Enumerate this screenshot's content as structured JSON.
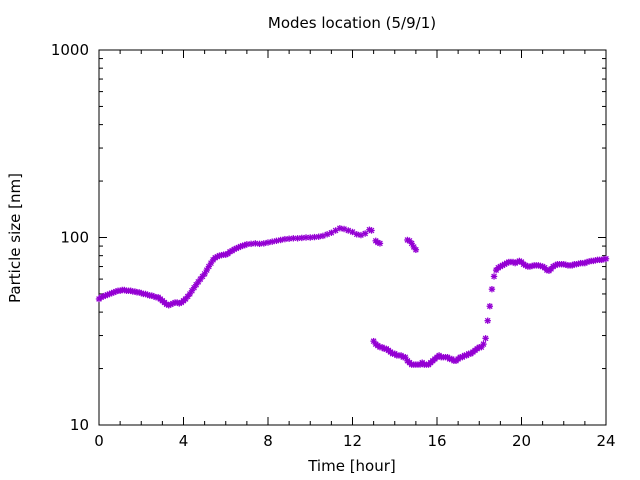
{
  "chart_data": {
    "type": "scatter",
    "title": "Modes location (5/9/1)",
    "xlabel": "Time [hour]",
    "ylabel": "Particle size [nm]",
    "xlim": [
      0,
      24
    ],
    "ylim": [
      10,
      1000
    ],
    "yscale": "log",
    "grid": false,
    "x_ticks": [
      0,
      4,
      8,
      12,
      16,
      20,
      24
    ],
    "y_ticks": [
      10,
      100,
      1000
    ],
    "marker_color": "#9400d3",
    "marker": "star",
    "series": [
      {
        "points": [
          [
            0.0,
            47
          ],
          [
            0.1,
            48
          ],
          [
            0.2,
            48.5
          ],
          [
            0.3,
            49
          ],
          [
            0.4,
            49.5
          ],
          [
            0.5,
            50
          ],
          [
            0.6,
            50.5
          ],
          [
            0.7,
            51
          ],
          [
            0.8,
            51.5
          ],
          [
            0.9,
            52
          ],
          [
            1.0,
            52
          ],
          [
            1.1,
            52.5
          ],
          [
            1.2,
            52.5
          ],
          [
            1.3,
            52
          ],
          [
            1.4,
            52
          ],
          [
            1.5,
            52
          ],
          [
            1.6,
            51.5
          ],
          [
            1.7,
            51.5
          ],
          [
            1.8,
            51
          ],
          [
            1.9,
            51
          ],
          [
            2.0,
            50.5
          ],
          [
            2.1,
            50
          ],
          [
            2.2,
            50
          ],
          [
            2.3,
            49.5
          ],
          [
            2.4,
            49
          ],
          [
            2.5,
            49
          ],
          [
            2.6,
            48.5
          ],
          [
            2.7,
            48
          ],
          [
            2.8,
            48
          ],
          [
            2.9,
            47
          ],
          [
            3.0,
            46
          ],
          [
            3.1,
            45
          ],
          [
            3.2,
            44
          ],
          [
            3.3,
            43.5
          ],
          [
            3.4,
            44
          ],
          [
            3.5,
            44.5
          ],
          [
            3.6,
            45
          ],
          [
            3.7,
            45
          ],
          [
            3.8,
            44.5
          ],
          [
            3.9,
            45
          ],
          [
            4.0,
            46
          ],
          [
            4.1,
            47
          ],
          [
            4.2,
            48.5
          ],
          [
            4.3,
            50
          ],
          [
            4.4,
            52
          ],
          [
            4.5,
            54
          ],
          [
            4.6,
            56
          ],
          [
            4.7,
            58
          ],
          [
            4.8,
            60
          ],
          [
            4.9,
            62
          ],
          [
            5.0,
            64
          ],
          [
            5.1,
            67
          ],
          [
            5.2,
            70
          ],
          [
            5.3,
            73
          ],
          [
            5.4,
            76
          ],
          [
            5.5,
            78
          ],
          [
            5.6,
            79
          ],
          [
            5.7,
            80
          ],
          [
            5.8,
            80.5
          ],
          [
            5.9,
            81
          ],
          [
            6.0,
            81
          ],
          [
            6.1,
            82
          ],
          [
            6.2,
            84
          ],
          [
            6.3,
            85
          ],
          [
            6.4,
            86.5
          ],
          [
            6.5,
            87.5
          ],
          [
            6.6,
            88.5
          ],
          [
            6.7,
            89.5
          ],
          [
            6.8,
            90.5
          ],
          [
            6.9,
            91
          ],
          [
            7.0,
            92
          ],
          [
            7.2,
            92.5
          ],
          [
            7.4,
            93
          ],
          [
            7.6,
            92.5
          ],
          [
            7.8,
            93
          ],
          [
            8.0,
            94
          ],
          [
            8.2,
            95
          ],
          [
            8.4,
            96
          ],
          [
            8.6,
            97
          ],
          [
            8.8,
            98
          ],
          [
            9.0,
            98.5
          ],
          [
            9.2,
            99
          ],
          [
            9.4,
            99
          ],
          [
            9.6,
            99.5
          ],
          [
            9.8,
            100
          ],
          [
            10.0,
            100
          ],
          [
            10.2,
            100.5
          ],
          [
            10.4,
            101
          ],
          [
            10.6,
            102
          ],
          [
            10.8,
            104
          ],
          [
            11.0,
            106
          ],
          [
            11.2,
            109
          ],
          [
            11.4,
            112
          ],
          [
            11.6,
            111
          ],
          [
            11.8,
            109
          ],
          [
            12.0,
            107
          ],
          [
            12.2,
            104
          ],
          [
            12.4,
            103
          ],
          [
            12.6,
            105
          ],
          [
            12.8,
            110
          ],
          [
            12.9,
            109
          ],
          [
            13.1,
            96
          ],
          [
            13.2,
            94
          ],
          [
            13.3,
            93
          ],
          [
            13.0,
            28
          ],
          [
            13.1,
            27
          ],
          [
            13.2,
            26.5
          ],
          [
            13.3,
            26
          ],
          [
            13.4,
            26
          ],
          [
            13.5,
            25.5
          ],
          [
            13.6,
            25.5
          ],
          [
            13.7,
            25
          ],
          [
            13.8,
            24.5
          ],
          [
            13.9,
            24
          ],
          [
            14.0,
            24
          ],
          [
            14.1,
            23.5
          ],
          [
            14.2,
            23.5
          ],
          [
            14.3,
            23.5
          ],
          [
            14.4,
            23
          ],
          [
            14.5,
            23
          ],
          [
            14.6,
            22
          ],
          [
            14.7,
            21.5
          ],
          [
            14.8,
            21
          ],
          [
            14.9,
            21
          ],
          [
            15.0,
            21
          ],
          [
            15.1,
            21
          ],
          [
            15.2,
            21
          ],
          [
            15.3,
            21.5
          ],
          [
            15.4,
            21
          ],
          [
            15.5,
            21
          ],
          [
            15.6,
            21
          ],
          [
            15.7,
            21.5
          ],
          [
            15.8,
            22
          ],
          [
            15.9,
            22.5
          ],
          [
            16.0,
            23
          ],
          [
            16.1,
            23.5
          ],
          [
            16.2,
            23
          ],
          [
            16.3,
            23
          ],
          [
            16.4,
            23
          ],
          [
            16.5,
            23
          ],
          [
            16.6,
            22.5
          ],
          [
            16.7,
            22.5
          ],
          [
            16.8,
            22
          ],
          [
            16.9,
            22
          ],
          [
            17.0,
            22.5
          ],
          [
            17.1,
            23
          ],
          [
            17.2,
            23
          ],
          [
            17.3,
            23.5
          ],
          [
            17.4,
            23.5
          ],
          [
            17.5,
            24
          ],
          [
            17.6,
            24
          ],
          [
            17.7,
            24.5
          ],
          [
            17.8,
            25
          ],
          [
            17.9,
            25.5
          ],
          [
            18.0,
            26
          ],
          [
            18.1,
            26
          ],
          [
            18.2,
            27
          ],
          [
            18.3,
            29
          ],
          [
            18.4,
            36
          ],
          [
            18.5,
            43
          ],
          [
            18.6,
            53
          ],
          [
            18.7,
            62
          ],
          [
            18.8,
            67
          ],
          [
            18.9,
            69
          ],
          [
            19.0,
            70
          ],
          [
            19.1,
            71
          ],
          [
            19.2,
            72
          ],
          [
            19.3,
            73
          ],
          [
            19.4,
            74
          ],
          [
            19.5,
            74
          ],
          [
            19.6,
            74
          ],
          [
            19.7,
            73
          ],
          [
            19.8,
            74
          ],
          [
            19.9,
            75
          ],
          [
            20.0,
            74
          ],
          [
            20.1,
            72
          ],
          [
            20.2,
            71
          ],
          [
            20.3,
            70
          ],
          [
            20.4,
            70
          ],
          [
            20.5,
            70.5
          ],
          [
            20.6,
            71
          ],
          [
            20.7,
            71
          ],
          [
            20.8,
            71
          ],
          [
            20.9,
            70.5
          ],
          [
            21.0,
            70
          ],
          [
            21.1,
            69
          ],
          [
            21.2,
            67
          ],
          [
            21.3,
            66.5
          ],
          [
            21.4,
            68
          ],
          [
            21.5,
            70
          ],
          [
            21.6,
            71
          ],
          [
            21.7,
            72
          ],
          [
            21.8,
            72
          ],
          [
            21.9,
            72
          ],
          [
            22.0,
            72
          ],
          [
            22.1,
            71.5
          ],
          [
            22.2,
            71
          ],
          [
            22.3,
            71
          ],
          [
            22.4,
            71
          ],
          [
            22.5,
            72
          ],
          [
            22.6,
            72
          ],
          [
            22.7,
            72.5
          ],
          [
            22.8,
            73
          ],
          [
            22.9,
            73
          ],
          [
            23.0,
            73
          ],
          [
            23.1,
            74
          ],
          [
            23.2,
            74.5
          ],
          [
            23.3,
            75
          ],
          [
            23.4,
            75
          ],
          [
            23.5,
            75.5
          ],
          [
            23.6,
            76
          ],
          [
            23.7,
            76
          ],
          [
            23.8,
            76
          ],
          [
            23.9,
            76.5
          ],
          [
            24.0,
            77
          ],
          [
            14.6,
            97
          ],
          [
            14.7,
            96
          ],
          [
            14.8,
            93
          ],
          [
            14.9,
            89
          ],
          [
            15.0,
            86
          ]
        ]
      }
    ]
  }
}
